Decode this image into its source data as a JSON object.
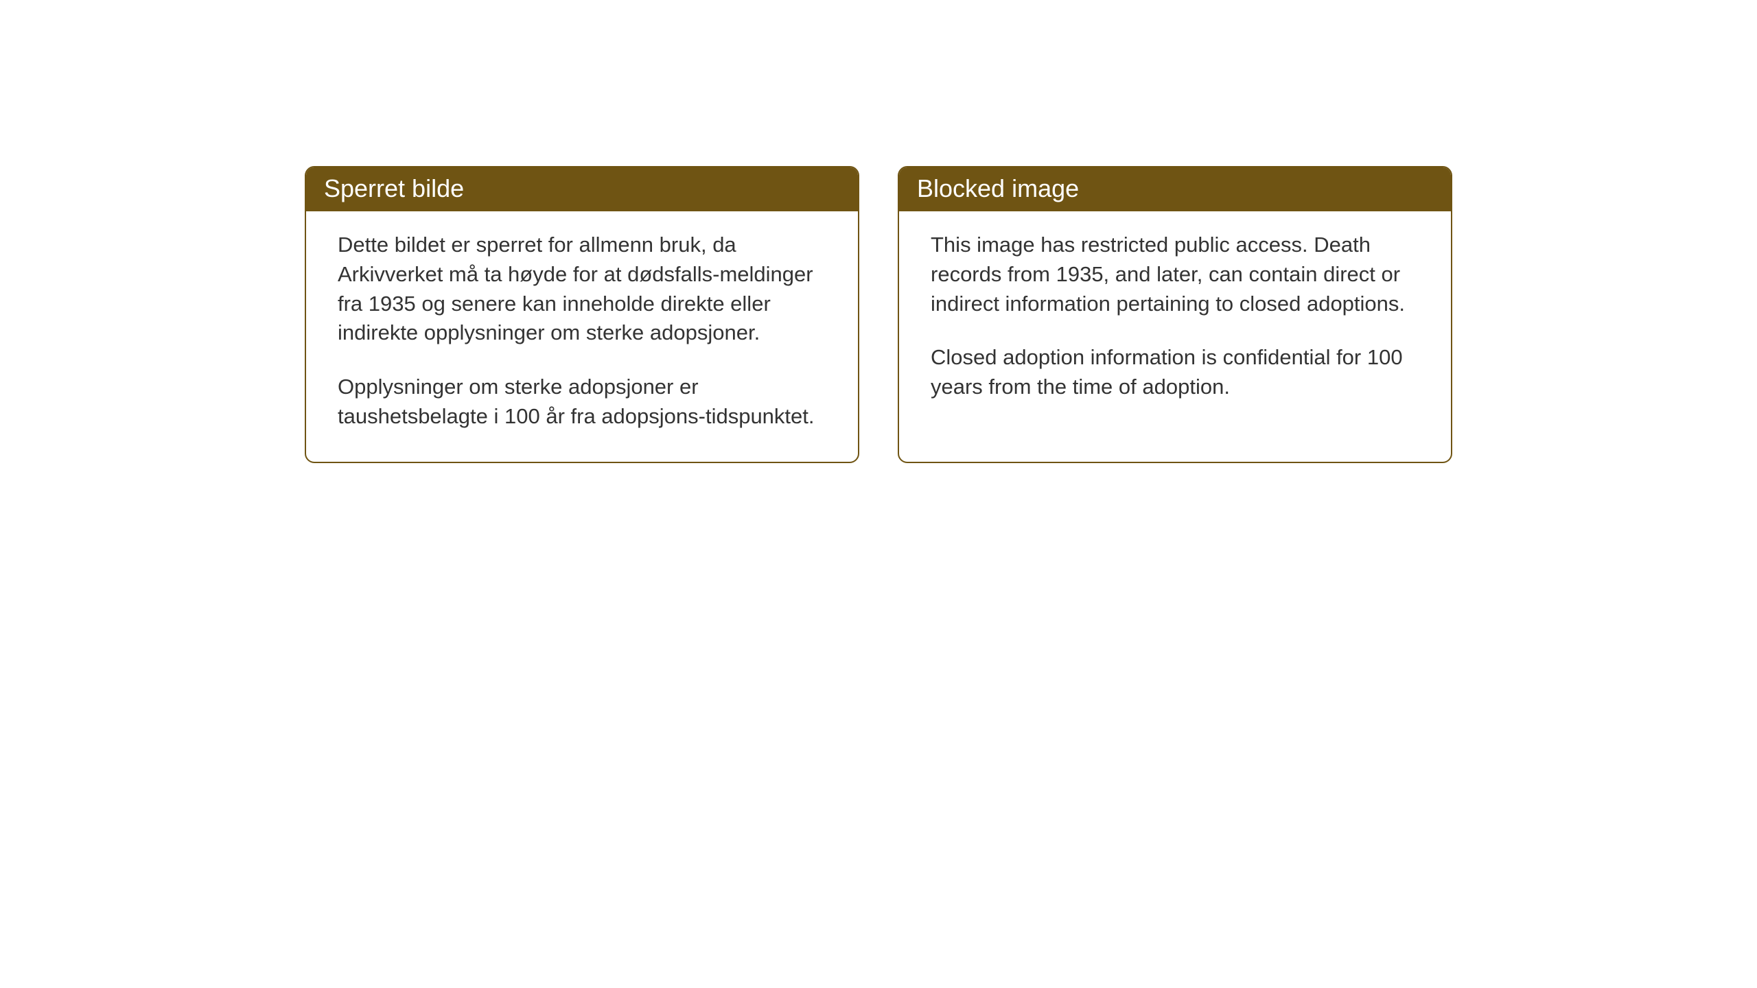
{
  "notices": {
    "norwegian": {
      "title": "Sperret bilde",
      "paragraph1": "Dette bildet er sperret for allmenn bruk, da Arkivverket må ta høyde for at dødsfalls-meldinger fra 1935 og senere kan inneholde direkte eller indirekte opplysninger om sterke adopsjoner.",
      "paragraph2": "Opplysninger om sterke adopsjoner er taushetsbelagte i 100 år fra adopsjons-tidspunktet."
    },
    "english": {
      "title": "Blocked image",
      "paragraph1": "This image has restricted public access. Death records from 1935, and later, can contain direct or indirect information pertaining to closed adoptions.",
      "paragraph2": "Closed adoption information is confidential for 100 years from the time of adoption."
    }
  },
  "styling": {
    "header_background": "#6f5413",
    "header_text_color": "#ffffff",
    "border_color": "#6f5413",
    "body_text_color": "#333333",
    "page_background": "#ffffff",
    "title_fontsize": 36,
    "body_fontsize": 31,
    "border_radius": 14,
    "border_width": 2
  }
}
